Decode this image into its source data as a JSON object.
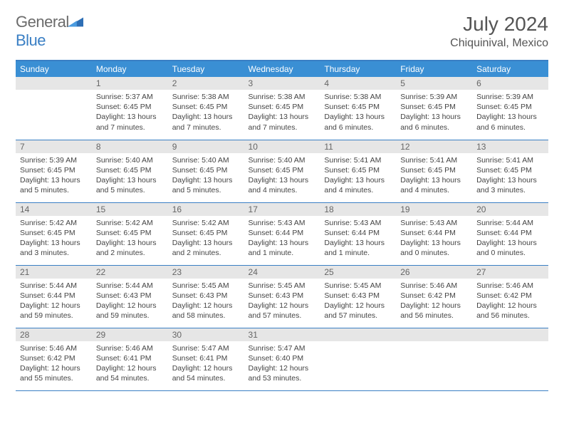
{
  "brand": {
    "part1": "General",
    "part2": "Blue"
  },
  "title": "July 2024",
  "location": "Chiquinival, Mexico",
  "colors": {
    "header_bg": "#3a8fd4",
    "rule": "#3a7fc4",
    "daynum_bg": "#e6e6e6",
    "text": "#444444",
    "title_text": "#555555"
  },
  "weekdays": [
    "Sunday",
    "Monday",
    "Tuesday",
    "Wednesday",
    "Thursday",
    "Friday",
    "Saturday"
  ],
  "weeks": [
    [
      null,
      {
        "n": "1",
        "sr": "5:37 AM",
        "ss": "6:45 PM",
        "dl": "13 hours and 7 minutes."
      },
      {
        "n": "2",
        "sr": "5:38 AM",
        "ss": "6:45 PM",
        "dl": "13 hours and 7 minutes."
      },
      {
        "n": "3",
        "sr": "5:38 AM",
        "ss": "6:45 PM",
        "dl": "13 hours and 7 minutes."
      },
      {
        "n": "4",
        "sr": "5:38 AM",
        "ss": "6:45 PM",
        "dl": "13 hours and 6 minutes."
      },
      {
        "n": "5",
        "sr": "5:39 AM",
        "ss": "6:45 PM",
        "dl": "13 hours and 6 minutes."
      },
      {
        "n": "6",
        "sr": "5:39 AM",
        "ss": "6:45 PM",
        "dl": "13 hours and 6 minutes."
      }
    ],
    [
      {
        "n": "7",
        "sr": "5:39 AM",
        "ss": "6:45 PM",
        "dl": "13 hours and 5 minutes."
      },
      {
        "n": "8",
        "sr": "5:40 AM",
        "ss": "6:45 PM",
        "dl": "13 hours and 5 minutes."
      },
      {
        "n": "9",
        "sr": "5:40 AM",
        "ss": "6:45 PM",
        "dl": "13 hours and 5 minutes."
      },
      {
        "n": "10",
        "sr": "5:40 AM",
        "ss": "6:45 PM",
        "dl": "13 hours and 4 minutes."
      },
      {
        "n": "11",
        "sr": "5:41 AM",
        "ss": "6:45 PM",
        "dl": "13 hours and 4 minutes."
      },
      {
        "n": "12",
        "sr": "5:41 AM",
        "ss": "6:45 PM",
        "dl": "13 hours and 4 minutes."
      },
      {
        "n": "13",
        "sr": "5:41 AM",
        "ss": "6:45 PM",
        "dl": "13 hours and 3 minutes."
      }
    ],
    [
      {
        "n": "14",
        "sr": "5:42 AM",
        "ss": "6:45 PM",
        "dl": "13 hours and 3 minutes."
      },
      {
        "n": "15",
        "sr": "5:42 AM",
        "ss": "6:45 PM",
        "dl": "13 hours and 2 minutes."
      },
      {
        "n": "16",
        "sr": "5:42 AM",
        "ss": "6:45 PM",
        "dl": "13 hours and 2 minutes."
      },
      {
        "n": "17",
        "sr": "5:43 AM",
        "ss": "6:44 PM",
        "dl": "13 hours and 1 minute."
      },
      {
        "n": "18",
        "sr": "5:43 AM",
        "ss": "6:44 PM",
        "dl": "13 hours and 1 minute."
      },
      {
        "n": "19",
        "sr": "5:43 AM",
        "ss": "6:44 PM",
        "dl": "13 hours and 0 minutes."
      },
      {
        "n": "20",
        "sr": "5:44 AM",
        "ss": "6:44 PM",
        "dl": "13 hours and 0 minutes."
      }
    ],
    [
      {
        "n": "21",
        "sr": "5:44 AM",
        "ss": "6:44 PM",
        "dl": "12 hours and 59 minutes."
      },
      {
        "n": "22",
        "sr": "5:44 AM",
        "ss": "6:43 PM",
        "dl": "12 hours and 59 minutes."
      },
      {
        "n": "23",
        "sr": "5:45 AM",
        "ss": "6:43 PM",
        "dl": "12 hours and 58 minutes."
      },
      {
        "n": "24",
        "sr": "5:45 AM",
        "ss": "6:43 PM",
        "dl": "12 hours and 57 minutes."
      },
      {
        "n": "25",
        "sr": "5:45 AM",
        "ss": "6:43 PM",
        "dl": "12 hours and 57 minutes."
      },
      {
        "n": "26",
        "sr": "5:46 AM",
        "ss": "6:42 PM",
        "dl": "12 hours and 56 minutes."
      },
      {
        "n": "27",
        "sr": "5:46 AM",
        "ss": "6:42 PM",
        "dl": "12 hours and 56 minutes."
      }
    ],
    [
      {
        "n": "28",
        "sr": "5:46 AM",
        "ss": "6:42 PM",
        "dl": "12 hours and 55 minutes."
      },
      {
        "n": "29",
        "sr": "5:46 AM",
        "ss": "6:41 PM",
        "dl": "12 hours and 54 minutes."
      },
      {
        "n": "30",
        "sr": "5:47 AM",
        "ss": "6:41 PM",
        "dl": "12 hours and 54 minutes."
      },
      {
        "n": "31",
        "sr": "5:47 AM",
        "ss": "6:40 PM",
        "dl": "12 hours and 53 minutes."
      },
      null,
      null,
      null
    ]
  ],
  "labels": {
    "sunrise": "Sunrise:",
    "sunset": "Sunset:",
    "daylight": "Daylight:"
  }
}
